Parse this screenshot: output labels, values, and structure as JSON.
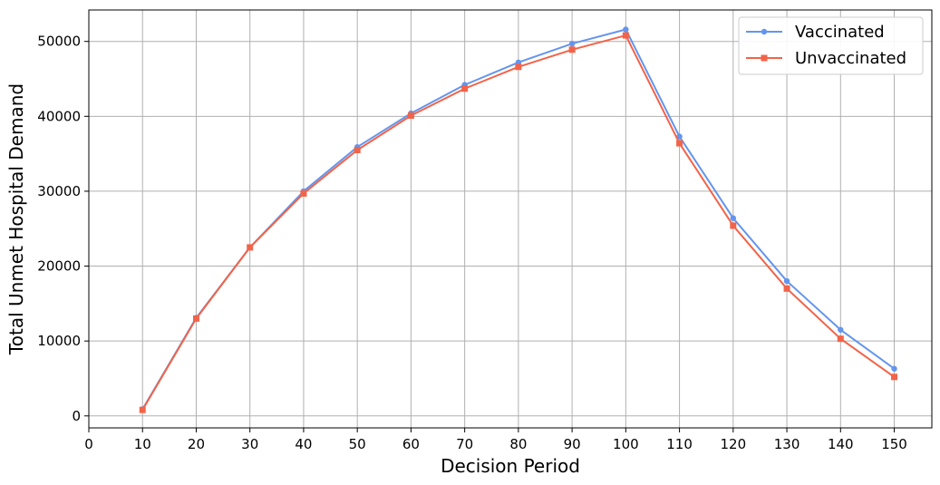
{
  "chart_data": {
    "type": "line",
    "title": "",
    "xlabel": "Decision Period",
    "ylabel": "Total Unmet Hospital Demand",
    "xlim": [
      0,
      157
    ],
    "ylim": [
      -1600,
      54200
    ],
    "grid": true,
    "legend_position": "top-right",
    "x_ticks": [
      0,
      10,
      20,
      30,
      40,
      50,
      60,
      70,
      80,
      90,
      100,
      110,
      120,
      130,
      140,
      150
    ],
    "y_ticks": [
      0,
      10000,
      20000,
      30000,
      40000,
      50000
    ],
    "x": [
      10,
      20,
      30,
      40,
      50,
      60,
      70,
      80,
      90,
      100,
      110,
      120,
      130,
      140,
      150
    ],
    "series": [
      {
        "name": "Vaccinated",
        "color": "#6495ED",
        "marker": "circle",
        "values": [
          900,
          13100,
          22500,
          30000,
          35900,
          40400,
          44200,
          47200,
          49700,
          51600,
          37300,
          26400,
          18000,
          11500,
          6300
        ]
      },
      {
        "name": "Unvaccinated",
        "color": "#F26349",
        "marker": "square",
        "values": [
          800,
          13000,
          22500,
          29700,
          35500,
          40100,
          43700,
          46600,
          48900,
          50800,
          36400,
          25400,
          17000,
          10300,
          5200
        ]
      }
    ]
  }
}
